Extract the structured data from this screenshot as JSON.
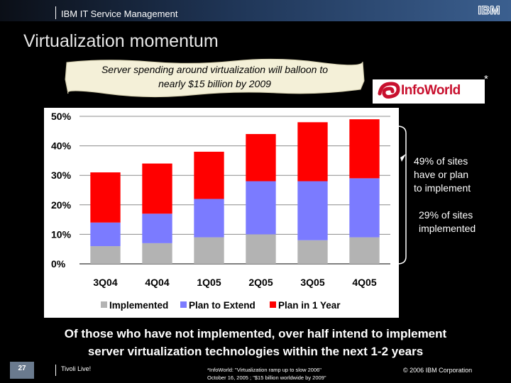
{
  "header": {
    "product": "IBM IT Service Management",
    "logo": "IBM"
  },
  "title": "Virtualization momentum",
  "callout": {
    "line1": "Server spending around virtualization will balloon to",
    "line2": "nearly $15 billion by 2009"
  },
  "source_logo": {
    "text": "InfoWorld",
    "asterisk": "*",
    "color": "#c8102e"
  },
  "annotations": {
    "plan_line1": "49% of sites",
    "plan_line2": "have or plan",
    "plan_line3": "to implement",
    "impl_line1": "29% of sites",
    "impl_line2": "implemented"
  },
  "bottom_text": {
    "line1": "Of those who have not implemented, over half intend to implement",
    "line2": "server virtualization technologies within the next 1-2 years"
  },
  "footer": {
    "page": "27",
    "left": "Tivoli Live!",
    "source_line1": "*InfoWorld: \"Virtualization ramp up to slow 2006\"",
    "source_line2": "October 16, 2005 ; \"$15 billion worldwide by 2009\"",
    "copyright": "© 2006 IBM Corporation"
  },
  "chart_data": {
    "type": "bar",
    "stacked": true,
    "categories": [
      "3Q04",
      "4Q04",
      "1Q05",
      "2Q05",
      "3Q05",
      "4Q05"
    ],
    "series": [
      {
        "name": "Implemented",
        "color": "#b3b3b3",
        "values": [
          6,
          7,
          9,
          10,
          8,
          9
        ]
      },
      {
        "name": "Plan to Extend",
        "color": "#7b7bff",
        "values": [
          8,
          10,
          13,
          18,
          20,
          20
        ]
      },
      {
        "name": "Plan in 1 Year",
        "color": "#ff0000",
        "values": [
          17,
          17,
          16,
          16,
          20,
          20
        ]
      }
    ],
    "y_tick_labels": [
      "0%",
      "10%",
      "20%",
      "30%",
      "40%",
      "50%"
    ],
    "ylim": [
      0,
      50
    ],
    "grid": true,
    "legend_position": "bottom"
  }
}
